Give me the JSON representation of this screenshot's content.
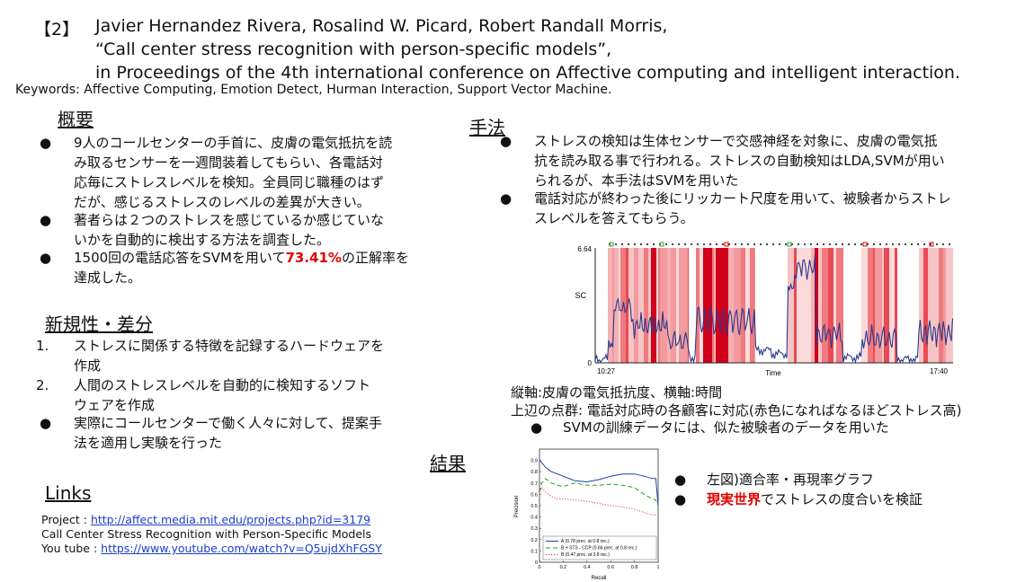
{
  "reference": {
    "number": "【2】",
    "authors": "Javier Hernandez Rivera, Rosalind W. Picard, Robert Randall Morris,",
    "title": "“Call center stress recognition with person-specific models”,",
    "venue": "in Proceedings of the 4th international conference on Affective computing and intelligent interaction.",
    "keywords": "Keywords: Affective Computing, Emotion Detect, Hurman Interaction, Support Vector Machine."
  },
  "overview": {
    "heading": "概要",
    "bullets": [
      {
        "lines": [
          "9人のコールセンターの手首に、皮膚の電気抵抗を読",
          "み取るセンサーを一週間装着してもらい、各電話対",
          "応毎にストレスレベルを検知。全員同じ職種のはず",
          "だが、感じるストレスのレベルの差異が大きい。"
        ]
      },
      {
        "lines": [
          "著者らは２つのストレスを感じているか感じていな",
          "いかを自動的に検出する方法を調査した。"
        ]
      },
      {
        "pre": "1500回の電話応答をSVMを用いて",
        "highlight": "73.41%",
        "post": "の正解率を",
        "line2": "達成した。"
      }
    ]
  },
  "novelty": {
    "heading": "新規性・差分",
    "items": [
      {
        "marker": "1.",
        "lines": [
          "ストレスに関係する特徴を記録するハードウェアを",
          "作成"
        ]
      },
      {
        "marker": "2.",
        "lines": [
          "人間のストレスレベルを自動的に検知するソフト",
          "ウェアを作成"
        ]
      },
      {
        "marker": "●",
        "lines": [
          "実際にコールセンターで働く人々に対して、提案手",
          "法を適用し実験を行った"
        ]
      }
    ]
  },
  "links": {
    "heading": "Links",
    "project_label": "Project : ",
    "project_url": "http://affect.media.mit.edu/projects.php?id=3179",
    "project_title": "Call Center Stress Recognition with Person-Specific Models",
    "youtube_label": "You tube : ",
    "youtube_url": "https://www.youtube.com/watch?v=Q5ujdXhFGSY"
  },
  "method": {
    "heading": "手法",
    "bullets": [
      {
        "lines": [
          "ストレスの検知は生体センサーで交感神経を対象に、皮膚の電気抵",
          "抗を読み取る事で行われる。ストレスの自動検知はLDA,SVMが用い",
          "られるが、本手法はSVMを用いた"
        ]
      },
      {
        "lines": [
          "電話対応が終わった後にリッカート尺度を用いて、被験者からストレ",
          "スレベルを答えてもらう。"
        ]
      }
    ],
    "caption1": "縦軸:皮膚の電気抵抗度、横軸:時間",
    "caption2": "上辺の点群: 電話対応時の各顧客に対応(赤色になればなるほどストレス高)",
    "svm_note": "SVMの訓練データには、似た被験者のデータを用いた"
  },
  "results": {
    "heading": "結果",
    "bullet1": "左図)適合率・再現率グラフ",
    "bullet2_highlight": "現実世界",
    "bullet2_rest": "でストレスの度合いを検証"
  },
  "sc_chart": {
    "y_top_label": "6.64",
    "y_bottom_label": "0",
    "y_axis_label": "SC",
    "x_start_label": "10:27",
    "x_mid_label": "Time",
    "x_end_label": "17:40"
  },
  "chart_data": {
    "type": "line",
    "xlabel": "Recall",
    "ylabel": "Precision",
    "xlim": [
      0,
      1
    ],
    "ylim": [
      0,
      1
    ],
    "x_ticks": [
      "0",
      "0.2",
      "0.4",
      "0.6",
      "0.8",
      "1"
    ],
    "y_ticks": [
      "0",
      "0.1",
      "0.2",
      "0.3",
      "0.4",
      "0.5",
      "0.6",
      "0.7",
      "0.8",
      "0.9"
    ],
    "legend_position": "bottom",
    "series": [
      {
        "name": "A (0.78 prec. at 0.8 rec.)",
        "color": "#1f3fa8",
        "dash": "",
        "x": [
          0.0,
          0.02,
          0.05,
          0.1,
          0.15,
          0.2,
          0.3,
          0.4,
          0.5,
          0.6,
          0.7,
          0.8,
          0.88,
          0.95,
          0.98,
          1.0
        ],
        "y": [
          0.9,
          0.88,
          0.84,
          0.8,
          0.78,
          0.76,
          0.72,
          0.71,
          0.73,
          0.76,
          0.78,
          0.78,
          0.76,
          0.74,
          0.74,
          0.5
        ]
      },
      {
        "name": "B + STS - CCP (0.66 prec. at 0.8 rec.)",
        "color": "#22a022",
        "dash": "5,3",
        "x": [
          0.0,
          0.02,
          0.05,
          0.1,
          0.15,
          0.2,
          0.3,
          0.4,
          0.5,
          0.6,
          0.7,
          0.8,
          0.88,
          0.95,
          0.98,
          1.0
        ],
        "y": [
          0.62,
          0.7,
          0.74,
          0.7,
          0.68,
          0.67,
          0.7,
          0.68,
          0.68,
          0.69,
          0.68,
          0.66,
          0.6,
          0.56,
          0.55,
          0.5
        ]
      },
      {
        "name": "B (0.47 prec. at 0.8 rec.)",
        "color": "#e02020",
        "dash": "1,2",
        "x": [
          0.0,
          0.02,
          0.05,
          0.1,
          0.15,
          0.2,
          0.3,
          0.4,
          0.5,
          0.6,
          0.7,
          0.8,
          0.88,
          0.95,
          1.0
        ],
        "y": [
          0.62,
          0.66,
          0.62,
          0.58,
          0.56,
          0.56,
          0.55,
          0.54,
          0.52,
          0.5,
          0.49,
          0.47,
          0.44,
          0.42,
          0.42
        ]
      }
    ]
  }
}
